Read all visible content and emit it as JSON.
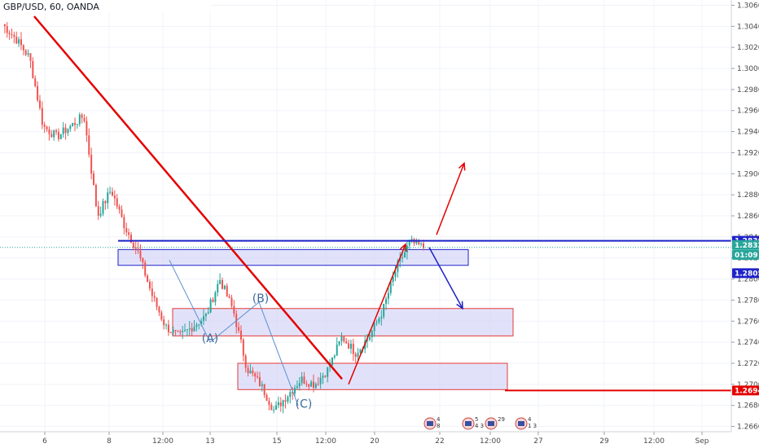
{
  "chart_data": {
    "type": "candlestick",
    "title": "GBP/USD, 60, OANDA",
    "y_axis": {
      "ylim": [
        1.2655,
        1.3065
      ],
      "ticks": [
        "1.30600",
        "1.30400",
        "1.30200",
        "1.30000",
        "1.29800",
        "1.29600",
        "1.29400",
        "1.29200",
        "1.29000",
        "1.28800",
        "1.28600",
        "1.28400",
        "1.28200",
        "1.28000",
        "1.27800",
        "1.27600",
        "1.27400",
        "1.27200",
        "1.27000",
        "1.26800",
        "1.26600"
      ]
    },
    "x_axis": {
      "ticks": [
        "6",
        "8",
        "12:00",
        "13",
        "15",
        "12:00",
        "20",
        "22",
        "12:00",
        "27",
        "29",
        "12:00",
        "Sep"
      ]
    },
    "price_labels": [
      {
        "text": "1.28363",
        "value": 1.28363,
        "color": "#1e22c8"
      },
      {
        "text": "1.28323",
        "value": 1.28323,
        "color": "#26a69a"
      },
      {
        "text": "01:09",
        "value": 1.2823,
        "color": "#26a69a"
      },
      {
        "text": "1.28056",
        "value": 1.28056,
        "color": "#1e22c8"
      },
      {
        "text": "1.26942",
        "value": 1.26942,
        "color": "#e50000"
      }
    ],
    "horizontal_lines": [
      {
        "value": 1.28363,
        "color": "#1e22c8"
      },
      {
        "value": 1.26942,
        "color": "#e50000"
      }
    ],
    "zones": [
      {
        "from": 1.2828,
        "to": 1.2813,
        "color": "#1e22c8"
      },
      {
        "from": 1.2772,
        "to": 1.2746,
        "color": "#e53935"
      },
      {
        "from": 1.272,
        "to": 1.2695,
        "color": "#e53935"
      }
    ],
    "wave_labels": [
      {
        "text": "(A)",
        "value": 1.274
      },
      {
        "text": "(B)",
        "value": 1.2778
      },
      {
        "text": "(C)",
        "value": 1.2678
      }
    ],
    "path_waypoints": [
      1.3042,
      1.3028,
      1.301,
      1.2945,
      1.2935,
      1.2945,
      1.2955,
      1.286,
      1.2885,
      1.285,
      1.2825,
      1.2785,
      1.2755,
      1.2745,
      1.2755,
      1.2765,
      1.28,
      1.277,
      1.2715,
      1.27,
      1.2675,
      1.269,
      1.2705,
      1.27,
      1.2715,
      1.2745,
      1.273,
      1.2745,
      1.277,
      1.281,
      1.2835,
      1.283
    ],
    "events": [
      {
        "label": "4",
        "sub": "8"
      },
      {
        "label": "5",
        "sub": "4 3"
      },
      {
        "label": "29",
        "sub": ""
      },
      {
        "label": "4",
        "sub": "1 3"
      }
    ],
    "colors": {
      "up": "#26a69a",
      "down": "#ef5350",
      "trendline": "#e50000",
      "target_up": "#e50000",
      "target_down": "#1e22c8",
      "wave_line": "#5b8fcf"
    }
  }
}
